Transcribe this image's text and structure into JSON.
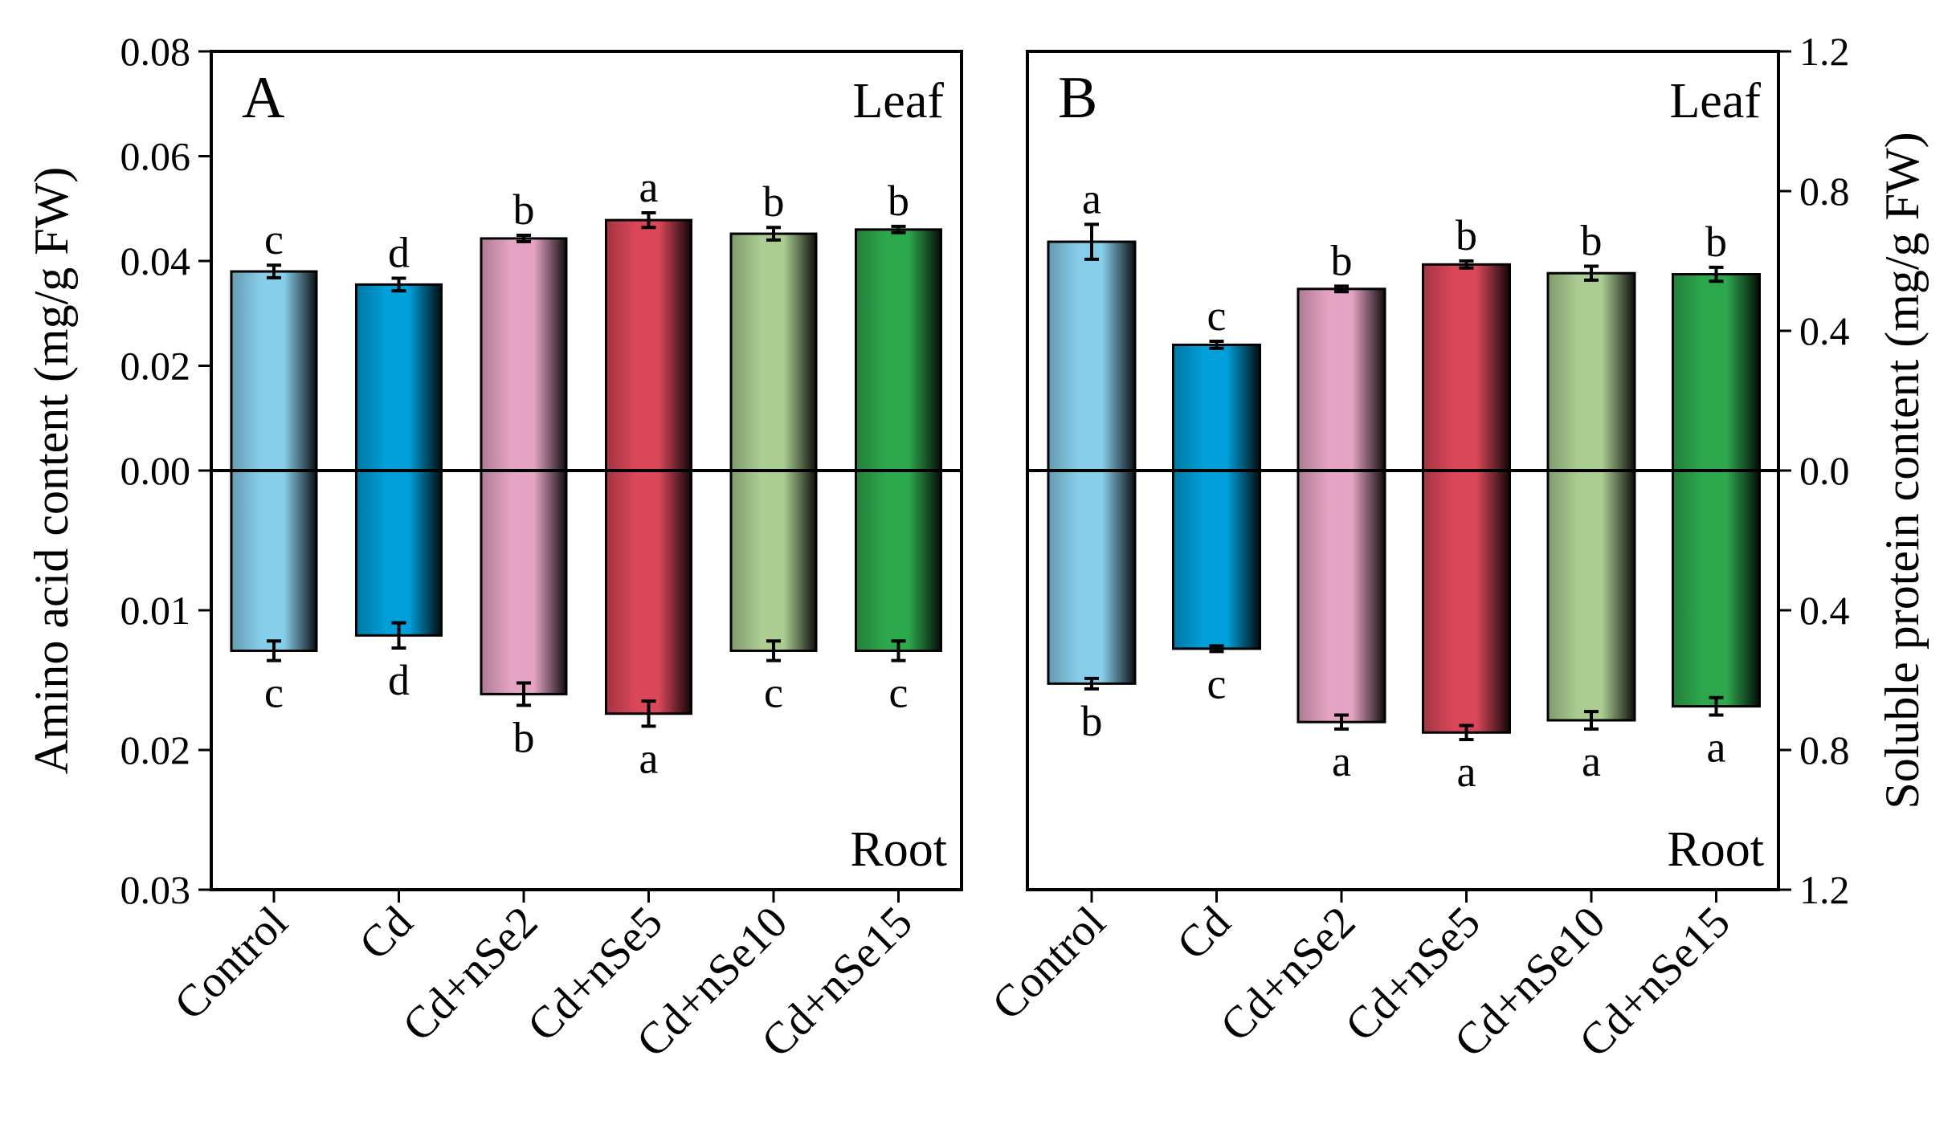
{
  "chart_data": [
    {
      "type": "bar",
      "panel_label": "A",
      "ylabel": "Amino acid content (mg/g FW)",
      "categories": [
        "Control",
        "Cd",
        "Cd+nSe2",
        "Cd+nSe5",
        "Cd+nSe10",
        "Cd+nSe15"
      ],
      "top_region_label": "Leaf",
      "bottom_region_label": "Root",
      "top_ylim": [
        0,
        0.08
      ],
      "bottom_ylim": [
        0,
        0.03
      ],
      "top_ticks": [
        "0.08",
        "0.06",
        "0.04",
        "0.02",
        "0.00"
      ],
      "bottom_ticks": [
        "0.01",
        "0.02",
        "0.03"
      ],
      "axis_side": "left",
      "series": [
        {
          "region": "Leaf",
          "values": [
            0.038,
            0.0355,
            0.0443,
            0.0478,
            0.0452,
            0.046
          ],
          "errors": [
            0.0012,
            0.0012,
            0.0006,
            0.0014,
            0.0012,
            0.0006
          ],
          "letters": [
            "c",
            "d",
            "b",
            "a",
            "b",
            "b"
          ]
        },
        {
          "region": "Root",
          "values": [
            0.0129,
            0.0118,
            0.016,
            0.0174,
            0.0129,
            0.0129
          ],
          "errors": [
            0.0007,
            0.0009,
            0.0008,
            0.0009,
            0.0007,
            0.0007
          ],
          "letters": [
            "c",
            "d",
            "b",
            "a",
            "c",
            "c"
          ]
        }
      ],
      "colors": [
        "#87CEEB",
        "#009FD9",
        "#E6A4C4",
        "#D94759",
        "#ABCD92",
        "#2EA84D"
      ]
    },
    {
      "type": "bar",
      "panel_label": "B",
      "ylabel": "Soluble protein content (mg/g FW)",
      "categories": [
        "Control",
        "Cd",
        "Cd+nSe2",
        "Cd+nSe5",
        "Cd+nSe10",
        "Cd+nSe15"
      ],
      "top_region_label": "Leaf",
      "bottom_region_label": "Root",
      "top_ylim": [
        0,
        1.2
      ],
      "bottom_ylim": [
        0,
        1.2
      ],
      "top_ticks": [
        "1.2",
        "0.8",
        "0.4",
        "0.0"
      ],
      "bottom_ticks": [
        "0.4",
        "0.8",
        "1.2"
      ],
      "axis_side": "right",
      "series": [
        {
          "region": "Leaf",
          "values": [
            0.655,
            0.36,
            0.52,
            0.59,
            0.565,
            0.562
          ],
          "errors": [
            0.05,
            0.01,
            0.008,
            0.01,
            0.02,
            0.02
          ],
          "letters": [
            "a",
            "c",
            "b",
            "b",
            "b",
            "b"
          ]
        },
        {
          "region": "Root",
          "values": [
            0.61,
            0.51,
            0.72,
            0.75,
            0.715,
            0.675
          ],
          "errors": [
            0.015,
            0.008,
            0.02,
            0.02,
            0.025,
            0.025
          ],
          "letters": [
            "b",
            "c",
            "a",
            "a",
            "a",
            "a"
          ]
        }
      ],
      "colors": [
        "#87CEEB",
        "#009FD9",
        "#E6A4C4",
        "#D94759",
        "#ABCD92",
        "#2EA84D"
      ]
    }
  ]
}
